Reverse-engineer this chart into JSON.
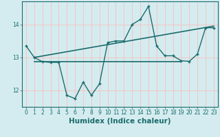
{
  "xlabel": "Humidex (Indice chaleur)",
  "bg_color": "#d4ecf0",
  "grid_color": "#f0c8c8",
  "line_color": "#1a6b6b",
  "xlim": [
    -0.5,
    23.5
  ],
  "ylim": [
    11.5,
    14.7
  ],
  "yticks": [
    12,
    13,
    14
  ],
  "xticks": [
    0,
    1,
    2,
    3,
    4,
    5,
    6,
    7,
    8,
    9,
    10,
    11,
    12,
    13,
    14,
    15,
    16,
    17,
    18,
    19,
    20,
    21,
    22,
    23
  ],
  "series1_x": [
    0,
    1,
    2,
    3,
    4,
    5,
    6,
    7,
    8,
    9,
    10,
    11,
    12,
    13,
    14,
    15,
    16,
    17,
    18,
    19,
    20,
    21,
    22,
    23
  ],
  "series1_y": [
    13.35,
    13.0,
    12.87,
    12.85,
    12.85,
    11.85,
    11.75,
    12.25,
    11.85,
    12.2,
    13.45,
    13.5,
    13.5,
    14.0,
    14.15,
    14.55,
    13.35,
    13.05,
    13.05,
    12.9,
    12.88,
    13.1,
    13.9,
    13.9
  ],
  "series2_x": [
    1,
    19
  ],
  "series2_y": [
    12.88,
    12.88
  ],
  "series3_x": [
    1,
    23
  ],
  "series3_y": [
    13.0,
    13.95
  ],
  "font_color": "#1a6b6b",
  "tick_fontsize": 5.5,
  "label_fontsize": 7.5
}
